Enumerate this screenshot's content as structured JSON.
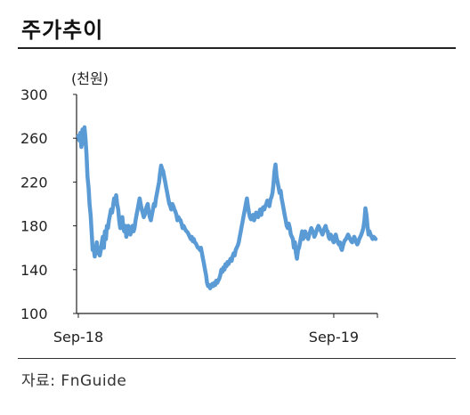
{
  "header": {
    "title": "주가추이"
  },
  "footer": {
    "source": "자료: FnGuide"
  },
  "chart_data": {
    "type": "line",
    "unit_label": "(천원)",
    "ylim": [
      100,
      300
    ],
    "y_ticks": [
      100,
      140,
      180,
      220,
      260,
      300
    ],
    "x_ticks": [
      {
        "label": "Sep-18",
        "index": 0
      },
      {
        "label": "Sep-19",
        "index": 250
      }
    ],
    "grid": false,
    "color": "#5b9bd5",
    "series": [
      {
        "values": [
          262,
          258,
          265,
          252,
          268,
          255,
          270,
          260,
          245,
          225,
          215,
          200,
          190,
          175,
          158,
          160,
          152,
          158,
          165,
          155,
          160,
          153,
          158,
          165,
          170,
          160,
          175,
          168,
          180,
          178,
          185,
          190,
          195,
          192,
          198,
          205,
          200,
          208,
          200,
          195,
          185,
          178,
          182,
          188,
          178,
          175,
          180,
          170,
          175,
          180,
          178,
          172,
          176,
          180,
          175,
          178,
          185,
          190,
          195,
          200,
          205,
          200,
          195,
          192,
          188,
          190,
          195,
          198,
          200,
          192,
          188,
          185,
          190,
          195,
          200,
          198,
          205,
          210,
          215,
          220,
          228,
          235,
          232,
          230,
          225,
          220,
          215,
          210,
          205,
          200,
          198,
          195,
          200,
          198,
          195,
          193,
          190,
          185,
          188,
          186,
          185,
          182,
          178,
          180,
          178,
          176,
          175,
          174,
          172,
          170,
          168,
          170,
          166,
          168,
          165,
          164,
          162,
          160,
          160,
          158,
          160,
          155,
          150,
          145,
          140,
          135,
          128,
          125,
          126,
          123,
          125,
          127,
          125,
          128,
          126,
          130,
          128,
          130,
          132,
          135,
          140,
          138,
          142,
          140,
          145,
          143,
          147,
          145,
          148,
          150,
          148,
          152,
          155,
          153,
          158,
          160,
          162,
          165,
          170,
          175,
          180,
          185,
          190,
          195,
          200,
          205,
          198,
          192,
          188,
          186,
          188,
          190,
          185,
          188,
          192,
          190,
          188,
          192,
          195,
          190,
          195,
          197,
          195,
          198,
          200,
          203,
          200,
          198,
          204,
          206,
          210,
          218,
          230,
          236,
          225,
          220,
          215,
          210,
          212,
          205,
          200,
          195,
          190,
          185,
          180,
          178,
          182,
          178,
          172,
          170,
          168,
          160,
          165,
          155,
          150,
          158,
          160,
          165,
          170,
          175,
          168,
          170,
          175,
          172,
          170,
          168,
          172,
          175,
          178,
          176,
          174,
          170,
          172,
          175,
          178,
          180,
          178,
          176,
          174,
          172,
          175,
          178,
          180,
          176,
          175,
          170,
          168,
          172,
          170,
          167,
          165,
          170,
          172,
          168,
          165,
          163,
          165,
          160,
          158,
          162,
          165,
          167,
          168,
          170,
          172,
          170,
          168,
          166,
          165,
          167,
          170,
          168,
          165,
          163,
          165,
          168,
          170,
          172,
          175,
          178,
          185,
          196,
          190,
          180,
          172,
          175,
          172,
          170,
          168,
          170,
          169,
          168
        ]
      }
    ]
  }
}
